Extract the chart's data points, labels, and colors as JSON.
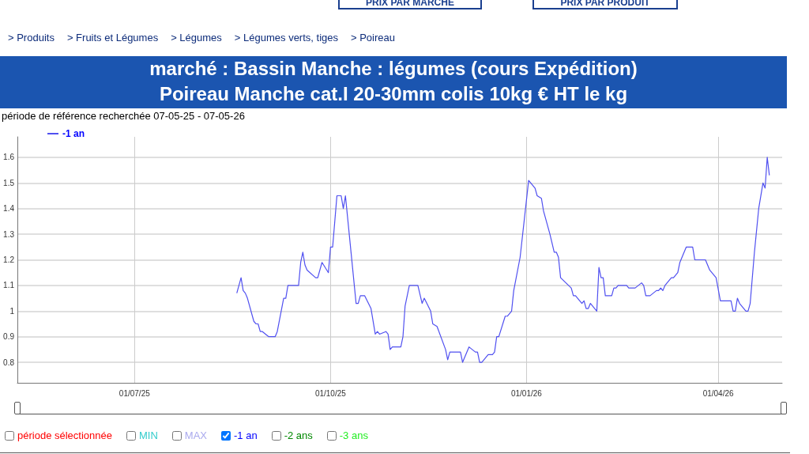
{
  "chart_data": {
    "type": "line",
    "title": "marché : Bassin Manche : légumes (cours Expédition)",
    "subtitle": "Poireau Manche cat.I 20-30mm colis 10kg € HT le kg",
    "annotations": [
      "PRIX PAR MARCHE",
      "PRIX PAR PRODUIT",
      "> Produits",
      "> Fruits et Légumes",
      "> Légumes",
      "> Légumes verts, tiges",
      "> Poireau",
      "période de référence recherchée 07-05-25 - 07-05-26",
      "période sélectionnée",
      "MIN",
      "MAX",
      "-1 an",
      "-2 ans",
      "-3 ans"
    ],
    "series": [
      {
        "name": "-1 an",
        "color": "#5050f0",
        "x": [
          "2025-08-18",
          "2025-08-20",
          "2025-08-21",
          "2025-08-22",
          "2025-08-23",
          "2025-08-26",
          "2025-08-27",
          "2025-08-28",
          "2025-08-29",
          "2025-08-30",
          "2025-09-02",
          "2025-09-05",
          "2025-09-06",
          "2025-09-09",
          "2025-09-10",
          "2025-09-11",
          "2025-09-16",
          "2025-09-17",
          "2025-09-18",
          "2025-09-19",
          "2025-09-20",
          "2025-09-24",
          "2025-09-25",
          "2025-09-27",
          "2025-09-30",
          "2025-10-01",
          "2025-10-02",
          "2025-10-04",
          "2025-10-06",
          "2025-10-07",
          "2025-10-08",
          "2025-10-13",
          "2025-10-14",
          "2025-10-15",
          "2025-10-17",
          "2025-10-20",
          "2025-10-22",
          "2025-10-23",
          "2025-10-24",
          "2025-10-27",
          "2025-10-28",
          "2025-10-29",
          "2025-10-30",
          "2025-11-03",
          "2025-11-04",
          "2025-11-05",
          "2025-11-07",
          "2025-11-11",
          "2025-11-13",
          "2025-11-14",
          "2025-11-17",
          "2025-11-18",
          "2025-11-20",
          "2025-11-24",
          "2025-11-25",
          "2025-11-26",
          "2025-12-01",
          "2025-12-02",
          "2025-12-05",
          "2025-12-08",
          "2025-12-09",
          "2025-12-10",
          "2025-12-11",
          "2025-12-14",
          "2025-12-16",
          "2025-12-17",
          "2025-12-18",
          "2025-12-19",
          "2025-12-22",
          "2025-12-23",
          "2025-12-25",
          "2025-12-26",
          "2025-12-29",
          "2026-01-02",
          "2026-01-05",
          "2026-01-06",
          "2026-01-08",
          "2026-01-09",
          "2026-01-12",
          "2026-01-14",
          "2026-01-15",
          "2026-01-16",
          "2026-01-17",
          "2026-01-22",
          "2026-01-23",
          "2026-01-24",
          "2026-01-27",
          "2026-01-28",
          "2026-01-29",
          "2026-01-30",
          "2026-01-31",
          "2026-02-03",
          "2026-02-04",
          "2026-02-05",
          "2026-02-06",
          "2026-02-07",
          "2026-02-10",
          "2026-02-11",
          "2026-02-12",
          "2026-02-13",
          "2026-02-17",
          "2026-02-18",
          "2026-02-21",
          "2026-02-24",
          "2026-02-25",
          "2026-02-26",
          "2026-02-28",
          "2026-03-03",
          "2026-03-04",
          "2026-03-05",
          "2026-03-06",
          "2026-03-07",
          "2026-03-10",
          "2026-03-11",
          "2026-03-13",
          "2026-03-14",
          "2026-03-17",
          "2026-03-20",
          "2026-03-21",
          "2026-03-26",
          "2026-03-27",
          "2026-03-28",
          "2026-03-31",
          "2026-04-02",
          "2026-04-07",
          "2026-04-08",
          "2026-04-09",
          "2026-04-10",
          "2026-04-11",
          "2026-04-14",
          "2026-04-15",
          "2026-04-16",
          "2026-04-18",
          "2026-04-20",
          "2026-04-22",
          "2026-04-23",
          "2026-04-24",
          "2026-04-25"
        ],
        "values": [
          1.07,
          1.13,
          1.08,
          1.07,
          1.05,
          0.96,
          0.95,
          0.95,
          0.92,
          0.92,
          0.9,
          0.9,
          0.92,
          1.05,
          1.05,
          1.1,
          1.1,
          1.19,
          1.23,
          1.18,
          1.16,
          1.13,
          1.13,
          1.19,
          1.15,
          1.25,
          1.25,
          1.45,
          1.45,
          1.4,
          1.45,
          1.03,
          1.03,
          1.06,
          1.06,
          1.01,
          0.91,
          0.92,
          0.91,
          0.92,
          0.91,
          0.85,
          0.86,
          0.86,
          0.9,
          1.02,
          1.1,
          1.1,
          1.03,
          1.05,
          1.0,
          0.95,
          0.94,
          0.85,
          0.81,
          0.84,
          0.84,
          0.8,
          0.86,
          0.84,
          0.84,
          0.8,
          0.8,
          0.83,
          0.83,
          0.84,
          0.9,
          0.9,
          0.98,
          0.98,
          1.0,
          1.08,
          1.21,
          1.51,
          1.48,
          1.45,
          1.44,
          1.39,
          1.3,
          1.23,
          1.23,
          1.21,
          1.13,
          1.09,
          1.06,
          1.06,
          1.03,
          1.04,
          1.01,
          1.01,
          1.03,
          1.0,
          1.17,
          1.13,
          1.13,
          1.06,
          1.06,
          1.09,
          1.09,
          1.1,
          1.1,
          1.09,
          1.09,
          1.11,
          1.1,
          1.06,
          1.06,
          1.08,
          1.08,
          1.09,
          1.08,
          1.1,
          1.13,
          1.13,
          1.15,
          1.19,
          1.25,
          1.25,
          1.2,
          1.2,
          1.18,
          1.16,
          1.13,
          1.04,
          1.04,
          1.0,
          1.0,
          1.05,
          1.03,
          1.0,
          1.0,
          1.03,
          1.23,
          1.4,
          1.5,
          1.48,
          1.6,
          1.53
        ]
      }
    ],
    "xlim": [
      "2025-05-07",
      "2026-05-01"
    ],
    "xticks": [
      {
        "value": "2025-07-01",
        "label": "01/07/25"
      },
      {
        "value": "2025-10-01",
        "label": "01/10/25"
      },
      {
        "value": "2026-01-01",
        "label": "01/01/26"
      },
      {
        "value": "2026-04-01",
        "label": "01/04/26"
      }
    ],
    "ylim": [
      0.72,
      1.68
    ],
    "yticks": [
      0.8,
      0.9,
      1,
      1.1,
      1.2,
      1.3,
      1.4,
      1.5,
      1.6
    ],
    "grid": true,
    "legend": "top left",
    "marker": "none",
    "line_style": "solid"
  }
}
